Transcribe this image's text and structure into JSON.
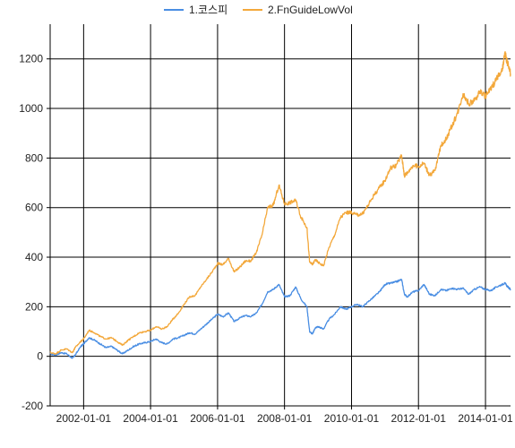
{
  "chart_data": {
    "type": "line",
    "title": "",
    "xlabel": "",
    "ylabel": "",
    "x_ticks": [
      "2002-01-01",
      "2004-01-01",
      "2006-01-01",
      "2008-01-01",
      "2010-01-01",
      "2012-01-01",
      "2014-01-01"
    ],
    "xlim": [
      "2001-01-01",
      "2014-10-01"
    ],
    "y_ticks": [
      "-200",
      "0",
      "200",
      "400",
      "600",
      "800",
      "1000",
      "1200"
    ],
    "ylim": [
      -200,
      1340
    ],
    "grid": true,
    "legend_position": "top-center",
    "series": [
      {
        "name": "1.코스피",
        "color": "#4a8ee3",
        "points": [
          [
            "2001-01-01",
            10
          ],
          [
            "2001-03-01",
            5
          ],
          [
            "2001-05-01",
            15
          ],
          [
            "2001-07-01",
            10
          ],
          [
            "2001-09-01",
            -8
          ],
          [
            "2001-10-01",
            5
          ],
          [
            "2001-12-01",
            40
          ],
          [
            "2002-01-01",
            50
          ],
          [
            "2002-03-01",
            75
          ],
          [
            "2002-05-01",
            65
          ],
          [
            "2002-07-01",
            50
          ],
          [
            "2002-09-01",
            35
          ],
          [
            "2002-11-01",
            40
          ],
          [
            "2003-01-01",
            25
          ],
          [
            "2003-03-01",
            10
          ],
          [
            "2003-05-01",
            25
          ],
          [
            "2003-07-01",
            40
          ],
          [
            "2003-09-01",
            50
          ],
          [
            "2003-11-01",
            55
          ],
          [
            "2004-01-01",
            60
          ],
          [
            "2004-03-01",
            70
          ],
          [
            "2004-05-01",
            55
          ],
          [
            "2004-07-01",
            50
          ],
          [
            "2004-09-01",
            70
          ],
          [
            "2004-11-01",
            75
          ],
          [
            "2005-01-01",
            85
          ],
          [
            "2005-03-01",
            95
          ],
          [
            "2005-05-01",
            90
          ],
          [
            "2005-07-01",
            110
          ],
          [
            "2005-09-01",
            130
          ],
          [
            "2005-11-01",
            150
          ],
          [
            "2006-01-01",
            170
          ],
          [
            "2006-03-01",
            160
          ],
          [
            "2006-05-01",
            175
          ],
          [
            "2006-07-01",
            140
          ],
          [
            "2006-09-01",
            155
          ],
          [
            "2006-11-01",
            165
          ],
          [
            "2007-01-01",
            160
          ],
          [
            "2007-03-01",
            175
          ],
          [
            "2007-05-01",
            210
          ],
          [
            "2007-07-01",
            260
          ],
          [
            "2007-09-01",
            270
          ],
          [
            "2007-11-01",
            290
          ],
          [
            "2008-01-01",
            240
          ],
          [
            "2008-03-01",
            245
          ],
          [
            "2008-05-01",
            280
          ],
          [
            "2008-07-01",
            230
          ],
          [
            "2008-09-01",
            200
          ],
          [
            "2008-10-01",
            100
          ],
          [
            "2008-11-01",
            90
          ],
          [
            "2008-12-01",
            115
          ],
          [
            "2009-01-01",
            120
          ],
          [
            "2009-03-01",
            110
          ],
          [
            "2009-05-01",
            150
          ],
          [
            "2009-07-01",
            170
          ],
          [
            "2009-09-01",
            200
          ],
          [
            "2009-11-01",
            190
          ],
          [
            "2010-01-01",
            200
          ],
          [
            "2010-03-01",
            210
          ],
          [
            "2010-05-01",
            200
          ],
          [
            "2010-07-01",
            220
          ],
          [
            "2010-09-01",
            240
          ],
          [
            "2010-11-01",
            260
          ],
          [
            "2011-01-01",
            290
          ],
          [
            "2011-03-01",
            295
          ],
          [
            "2011-05-01",
            300
          ],
          [
            "2011-07-01",
            310
          ],
          [
            "2011-08-01",
            250
          ],
          [
            "2011-09-01",
            240
          ],
          [
            "2011-11-01",
            260
          ],
          [
            "2012-01-01",
            265
          ],
          [
            "2012-03-01",
            290
          ],
          [
            "2012-05-01",
            250
          ],
          [
            "2012-07-01",
            245
          ],
          [
            "2012-09-01",
            270
          ],
          [
            "2012-11-01",
            265
          ],
          [
            "2013-01-01",
            275
          ],
          [
            "2013-03-01",
            270
          ],
          [
            "2013-05-01",
            275
          ],
          [
            "2013-07-01",
            250
          ],
          [
            "2013-09-01",
            270
          ],
          [
            "2013-11-01",
            280
          ],
          [
            "2014-01-01",
            270
          ],
          [
            "2014-03-01",
            265
          ],
          [
            "2014-05-01",
            280
          ],
          [
            "2014-07-01",
            290
          ],
          [
            "2014-08-01",
            295
          ],
          [
            "2014-09-01",
            280
          ],
          [
            "2014-10-01",
            270
          ]
        ]
      },
      {
        "name": "2.FnGuideLowVol",
        "color": "#f3a83b",
        "points": [
          [
            "2001-01-01",
            15
          ],
          [
            "2001-03-01",
            10
          ],
          [
            "2001-05-01",
            25
          ],
          [
            "2001-07-01",
            30
          ],
          [
            "2001-09-01",
            15
          ],
          [
            "2001-10-01",
            35
          ],
          [
            "2001-12-01",
            60
          ],
          [
            "2002-01-01",
            70
          ],
          [
            "2002-03-01",
            105
          ],
          [
            "2002-05-01",
            95
          ],
          [
            "2002-07-01",
            80
          ],
          [
            "2002-09-01",
            70
          ],
          [
            "2002-11-01",
            75
          ],
          [
            "2003-01-01",
            60
          ],
          [
            "2003-03-01",
            45
          ],
          [
            "2003-05-01",
            65
          ],
          [
            "2003-07-01",
            80
          ],
          [
            "2003-09-01",
            95
          ],
          [
            "2003-11-01",
            100
          ],
          [
            "2004-01-01",
            105
          ],
          [
            "2004-03-01",
            120
          ],
          [
            "2004-05-01",
            110
          ],
          [
            "2004-07-01",
            120
          ],
          [
            "2004-09-01",
            150
          ],
          [
            "2004-11-01",
            175
          ],
          [
            "2005-01-01",
            210
          ],
          [
            "2005-03-01",
            240
          ],
          [
            "2005-05-01",
            245
          ],
          [
            "2005-07-01",
            280
          ],
          [
            "2005-09-01",
            310
          ],
          [
            "2005-11-01",
            340
          ],
          [
            "2006-01-01",
            375
          ],
          [
            "2006-03-01",
            370
          ],
          [
            "2006-05-01",
            395
          ],
          [
            "2006-07-01",
            340
          ],
          [
            "2006-09-01",
            360
          ],
          [
            "2006-11-01",
            385
          ],
          [
            "2007-01-01",
            385
          ],
          [
            "2007-03-01",
            420
          ],
          [
            "2007-05-01",
            490
          ],
          [
            "2007-07-01",
            600
          ],
          [
            "2007-09-01",
            610
          ],
          [
            "2007-11-01",
            690
          ],
          [
            "2008-01-01",
            615
          ],
          [
            "2008-03-01",
            620
          ],
          [
            "2008-05-01",
            630
          ],
          [
            "2008-07-01",
            560
          ],
          [
            "2008-09-01",
            520
          ],
          [
            "2008-10-01",
            380
          ],
          [
            "2008-11-01",
            370
          ],
          [
            "2008-12-01",
            390
          ],
          [
            "2009-01-01",
            380
          ],
          [
            "2009-03-01",
            365
          ],
          [
            "2009-05-01",
            440
          ],
          [
            "2009-07-01",
            490
          ],
          [
            "2009-09-01",
            560
          ],
          [
            "2009-11-01",
            580
          ],
          [
            "2010-01-01",
            580
          ],
          [
            "2010-03-01",
            570
          ],
          [
            "2010-05-01",
            575
          ],
          [
            "2010-07-01",
            610
          ],
          [
            "2010-09-01",
            650
          ],
          [
            "2010-11-01",
            680
          ],
          [
            "2011-01-01",
            710
          ],
          [
            "2011-03-01",
            760
          ],
          [
            "2011-05-01",
            770
          ],
          [
            "2011-07-01",
            810
          ],
          [
            "2011-08-01",
            730
          ],
          [
            "2011-09-01",
            740
          ],
          [
            "2011-11-01",
            770
          ],
          [
            "2012-01-01",
            765
          ],
          [
            "2012-03-01",
            780
          ],
          [
            "2012-05-01",
            730
          ],
          [
            "2012-07-01",
            750
          ],
          [
            "2012-09-01",
            850
          ],
          [
            "2012-11-01",
            880
          ],
          [
            "2013-01-01",
            930
          ],
          [
            "2013-03-01",
            980
          ],
          [
            "2013-05-01",
            1060
          ],
          [
            "2013-07-01",
            1020
          ],
          [
            "2013-09-01",
            1030
          ],
          [
            "2013-11-01",
            1070
          ],
          [
            "2014-01-01",
            1050
          ],
          [
            "2014-03-01",
            1080
          ],
          [
            "2014-05-01",
            1120
          ],
          [
            "2014-07-01",
            1150
          ],
          [
            "2014-08-01",
            1220
          ],
          [
            "2014-09-01",
            1180
          ],
          [
            "2014-10-01",
            1140
          ]
        ]
      }
    ]
  }
}
